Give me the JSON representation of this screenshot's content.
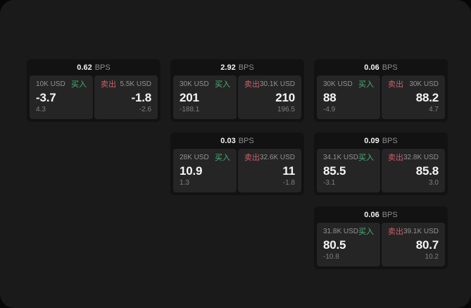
{
  "labels": {
    "unit": "BPS",
    "buy": "买入",
    "sell": "卖出"
  },
  "colors": {
    "backdrop": "#070707",
    "window_bg": "#1a1a1a",
    "card_bg": "#121212",
    "panel_bg": "#252525",
    "buy_green": "#46b376",
    "sell_red": "#c95f6c",
    "primary_text": "#f5f5f5",
    "secondary_text": "#929292"
  },
  "cards": [
    {
      "spread_bps": "0.62",
      "buy": {
        "size": "10K USD",
        "price": "-3.7",
        "sub": "4.3"
      },
      "sell": {
        "size": "5.5K USD",
        "price": "-1.8",
        "sub": "-2.6"
      }
    },
    {
      "spread_bps": "2.92",
      "buy": {
        "size": "30K USD",
        "price": "201",
        "sub": "-188.1"
      },
      "sell": {
        "size": "30.1K USD",
        "price": "210",
        "sub": "196.5"
      }
    },
    {
      "spread_bps": "0.06",
      "buy": {
        "size": "30K USD",
        "price": "88",
        "sub": "-4.9"
      },
      "sell": {
        "size": "30K USD",
        "price": "88.2",
        "sub": "4.7"
      }
    },
    {
      "spread_bps": "0.03",
      "buy": {
        "size": "28K USD",
        "price": "10.9",
        "sub": "1.3"
      },
      "sell": {
        "size": "32.6K USD",
        "price": "11",
        "sub": "-1.8"
      }
    },
    {
      "spread_bps": "0.09",
      "buy": {
        "size": "34.1K USD",
        "price": "85.5",
        "sub": "-3.1"
      },
      "sell": {
        "size": "32.8K USD",
        "price": "85.8",
        "sub": "3.0"
      }
    },
    {
      "spread_bps": "0.06",
      "buy": {
        "size": "31.8K USD",
        "price": "80.5",
        "sub": "-10.8"
      },
      "sell": {
        "size": "39.1K USD",
        "price": "80.7",
        "sub": "10.2"
      }
    }
  ]
}
